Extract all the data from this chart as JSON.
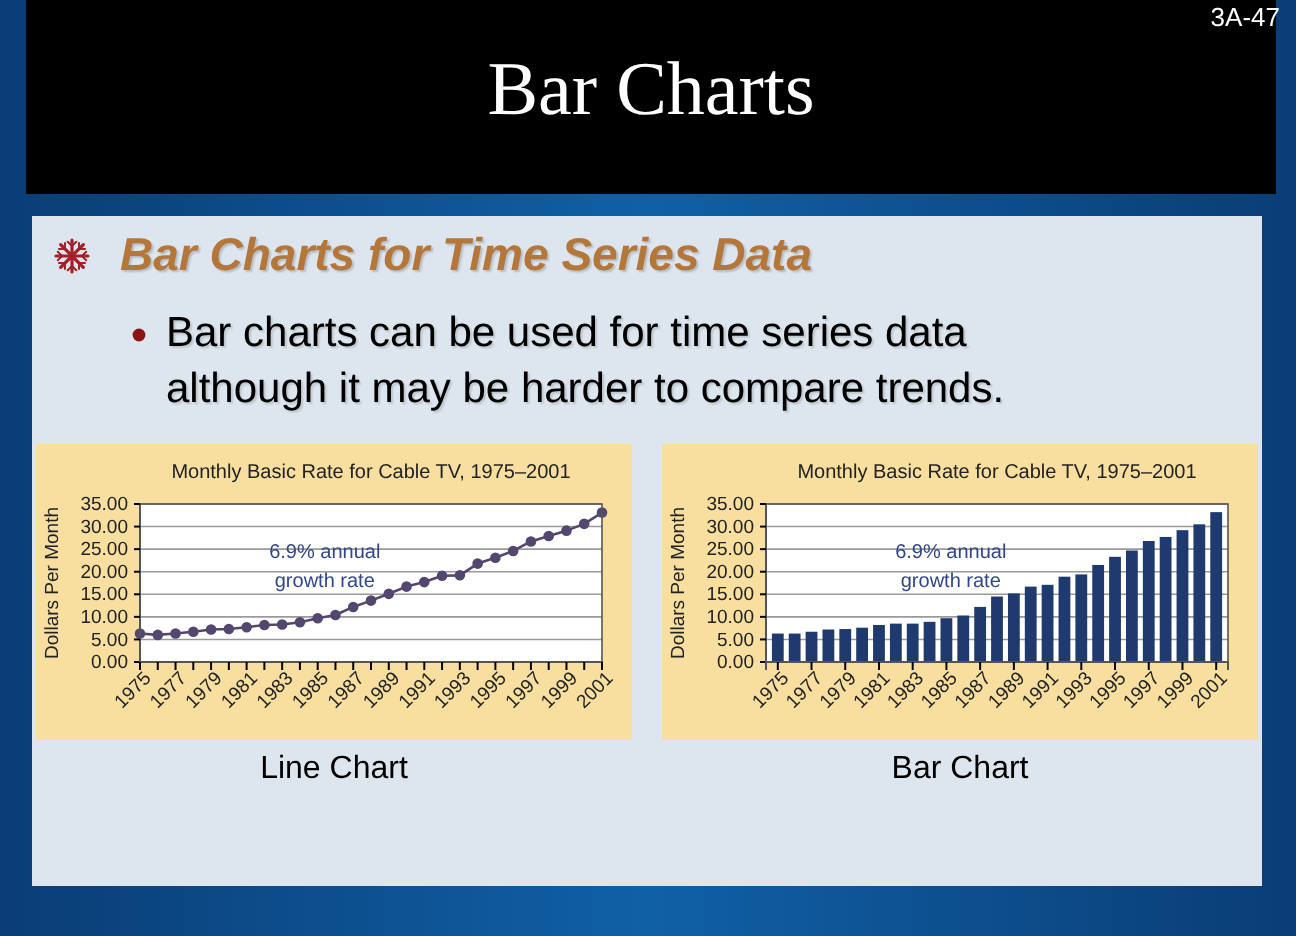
{
  "chart_data": [
    {
      "type": "other",
      "title": "Bar Charts",
      "annotations": [
        "3A-47",
        "Bar Charts for Time Series Data",
        "Bar charts can be used for time series data although it may be harder to compare trends."
      ]
    },
    {
      "type": "line",
      "title": "Monthly Basic Rate for Cable TV, 1975–2001",
      "ylabel": "Dollars Per Month",
      "x": [
        1975,
        1976,
        1977,
        1978,
        1979,
        1980,
        1981,
        1982,
        1983,
        1984,
        1985,
        1986,
        1987,
        1988,
        1989,
        1990,
        1991,
        1992,
        1993,
        1994,
        1995,
        1996,
        1997,
        1998,
        1999,
        2000,
        2001
      ],
      "values": [
        6.3,
        6.0,
        6.3,
        6.7,
        7.2,
        7.3,
        7.7,
        8.2,
        8.3,
        8.8,
        9.7,
        10.4,
        12.2,
        13.6,
        15.1,
        16.7,
        17.7,
        19.1,
        19.2,
        21.8,
        23.1,
        24.6,
        26.7,
        27.9,
        29.1,
        30.6,
        33.1
      ],
      "color": "#54476f",
      "marker": "circle",
      "line_style": "solid",
      "xlim": [
        1975,
        2001
      ],
      "xticks": [
        1975,
        {
          "value": 1976,
          "label": null
        },
        1977,
        {
          "value": 1978,
          "label": null
        },
        1979,
        {
          "value": 1980,
          "label": null
        },
        1981,
        {
          "value": 1982,
          "label": null
        },
        1983,
        {
          "value": 1984,
          "label": null
        },
        1985,
        {
          "value": 1986,
          "label": null
        },
        1987,
        {
          "value": 1988,
          "label": null
        },
        1989,
        {
          "value": 1990,
          "label": null
        },
        1991,
        {
          "value": 1992,
          "label": null
        },
        1993,
        {
          "value": 1994,
          "label": null
        },
        1995,
        {
          "value": 1996,
          "label": null
        },
        1997,
        {
          "value": 1998,
          "label": null
        },
        1999,
        {
          "value": 2000,
          "label": null
        },
        2001
      ],
      "ylim": [
        0,
        35
      ],
      "yticks": [
        {
          "value": 0,
          "label": "0.00"
        },
        {
          "value": 5,
          "label": "5.00"
        },
        {
          "value": 10,
          "label": "10.00"
        },
        {
          "value": 15,
          "label": "15.00"
        },
        {
          "value": 20,
          "label": "20.00"
        },
        {
          "value": 25,
          "label": "25.00"
        },
        {
          "value": 30,
          "label": "30.00"
        },
        {
          "value": 35,
          "label": "35.00"
        }
      ],
      "grid": "y",
      "annotations": [
        "6.9% annual growth rate",
        "Line Chart"
      ]
    },
    {
      "type": "bar",
      "title": "Monthly Basic Rate for Cable TV, 1975–2001",
      "ylabel": "Dollars Per Month",
      "categories": [
        "1975",
        null,
        "1977",
        null,
        "1979",
        null,
        "1981",
        null,
        "1983",
        null,
        "1985",
        null,
        "1987",
        null,
        "1989",
        null,
        "1991",
        null,
        "1993",
        null,
        "1995",
        null,
        "1997",
        null,
        "1999",
        null,
        "2001"
      ],
      "values": [
        6.3,
        6.3,
        6.7,
        7.2,
        7.3,
        7.6,
        8.2,
        8.5,
        8.5,
        8.9,
        9.7,
        10.3,
        12.2,
        14.5,
        15.2,
        16.7,
        17.1,
        18.9,
        19.4,
        21.5,
        23.3,
        24.7,
        26.8,
        27.7,
        29.2,
        30.5,
        33.2
      ],
      "color": "#1f3a6e",
      "ylim": [
        0,
        35
      ],
      "yticks": [
        {
          "value": 0,
          "label": "0.00"
        },
        {
          "value": 5,
          "label": "5.00"
        },
        {
          "value": 10,
          "label": "10.00"
        },
        {
          "value": 15,
          "label": "15.00"
        },
        {
          "value": 20,
          "label": "20.00"
        },
        {
          "value": 25,
          "label": "25.00"
        },
        {
          "value": 30,
          "label": "30.00"
        },
        {
          "value": 35,
          "label": "35.00"
        }
      ],
      "grid": "y",
      "annotations": [
        "6.9% annual growth rate",
        "Bar Chart"
      ]
    }
  ]
}
